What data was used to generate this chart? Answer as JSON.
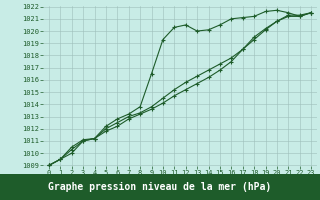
{
  "xlabel": "Graphe pression niveau de la mer (hPa)",
  "background_color": "#c8ece6",
  "grid_color": "#9dbfba",
  "line_color": "#1e5c2a",
  "x_values": [
    0,
    1,
    2,
    3,
    4,
    5,
    6,
    7,
    8,
    9,
    10,
    11,
    12,
    13,
    14,
    15,
    16,
    17,
    18,
    19,
    20,
    21,
    22,
    23
  ],
  "line1": [
    1009.0,
    1009.5,
    1010.0,
    1011.0,
    1011.2,
    1012.2,
    1012.8,
    1013.2,
    1013.8,
    1016.5,
    1019.3,
    1020.3,
    1020.5,
    1020.0,
    1020.1,
    1020.5,
    1021.0,
    1021.1,
    1021.2,
    1021.6,
    1021.7,
    1021.5,
    1021.2,
    1021.5
  ],
  "line2": [
    1009.0,
    1009.5,
    1010.5,
    1011.1,
    1011.2,
    1012.0,
    1012.5,
    1013.0,
    1013.3,
    1013.8,
    1014.5,
    1015.2,
    1015.8,
    1016.3,
    1016.8,
    1017.3,
    1017.8,
    1018.5,
    1019.3,
    1020.1,
    1020.8,
    1021.2,
    1021.2,
    1021.5
  ],
  "line3": [
    1009.0,
    1009.5,
    1010.3,
    1011.0,
    1011.2,
    1011.8,
    1012.2,
    1012.8,
    1013.2,
    1013.6,
    1014.1,
    1014.7,
    1015.2,
    1015.7,
    1016.2,
    1016.8,
    1017.5,
    1018.5,
    1019.5,
    1020.2,
    1020.8,
    1021.3,
    1021.3,
    1021.5
  ],
  "ylim": [
    1009,
    1022
  ],
  "xlim": [
    0,
    23
  ],
  "yticks": [
    1009,
    1010,
    1011,
    1012,
    1013,
    1014,
    1015,
    1016,
    1017,
    1018,
    1019,
    1020,
    1021,
    1022
  ],
  "xticks": [
    0,
    1,
    2,
    3,
    4,
    5,
    6,
    7,
    8,
    9,
    10,
    11,
    12,
    13,
    14,
    15,
    16,
    17,
    18,
    19,
    20,
    21,
    22,
    23
  ],
  "marker": "+",
  "marker_size": 3.5,
  "line_width": 0.8,
  "tick_fontsize": 5.0,
  "xlabel_fontsize": 7.0,
  "bottom_bar_color": "#1e5c2a",
  "bottom_bar_height": 0.13
}
